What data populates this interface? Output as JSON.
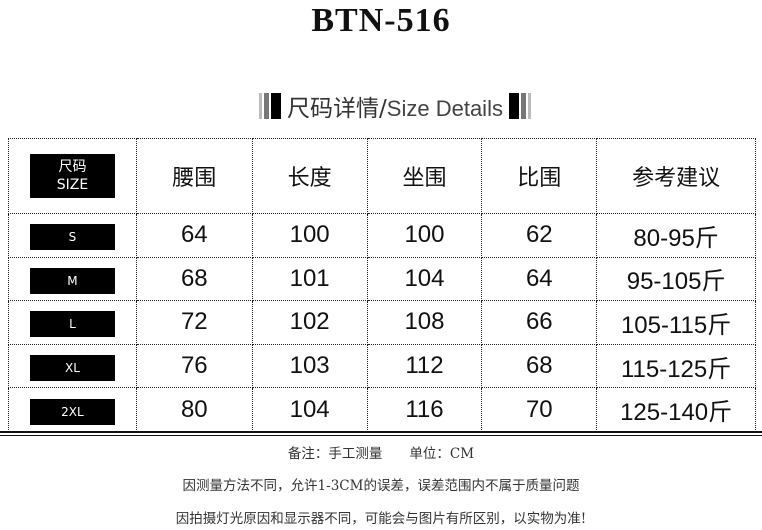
{
  "title": "BTN-516",
  "banner": {
    "zh": "尺码详情/",
    "en": "Size Details"
  },
  "table": {
    "header_badge": [
      "尺码",
      "SIZE"
    ],
    "columns": [
      "腰围",
      "长度",
      "坐围",
      "比围",
      "参考建议"
    ],
    "rows": [
      {
        "size": "S",
        "values": [
          "64",
          "100",
          "100",
          "62",
          "80-95斤"
        ]
      },
      {
        "size": "M",
        "values": [
          "68",
          "101",
          "104",
          "64",
          "95-105斤"
        ]
      },
      {
        "size": "L",
        "values": [
          "72",
          "102",
          "108",
          "66",
          "105-115斤"
        ]
      },
      {
        "size": "XL",
        "values": [
          "76",
          "103",
          "112",
          "68",
          "115-125斤"
        ]
      },
      {
        "size": "2XL",
        "values": [
          "80",
          "104",
          "116",
          "70",
          "125-140斤"
        ]
      }
    ]
  },
  "notes": [
    "备注：手工测量　　单位：CM",
    "因测量方法不同，允许1-3CM的误差，误差范围内不属于质量问题",
    "因拍摄灯光原因和显示器不同，可能会与图片有所区别，以实物为准!"
  ]
}
